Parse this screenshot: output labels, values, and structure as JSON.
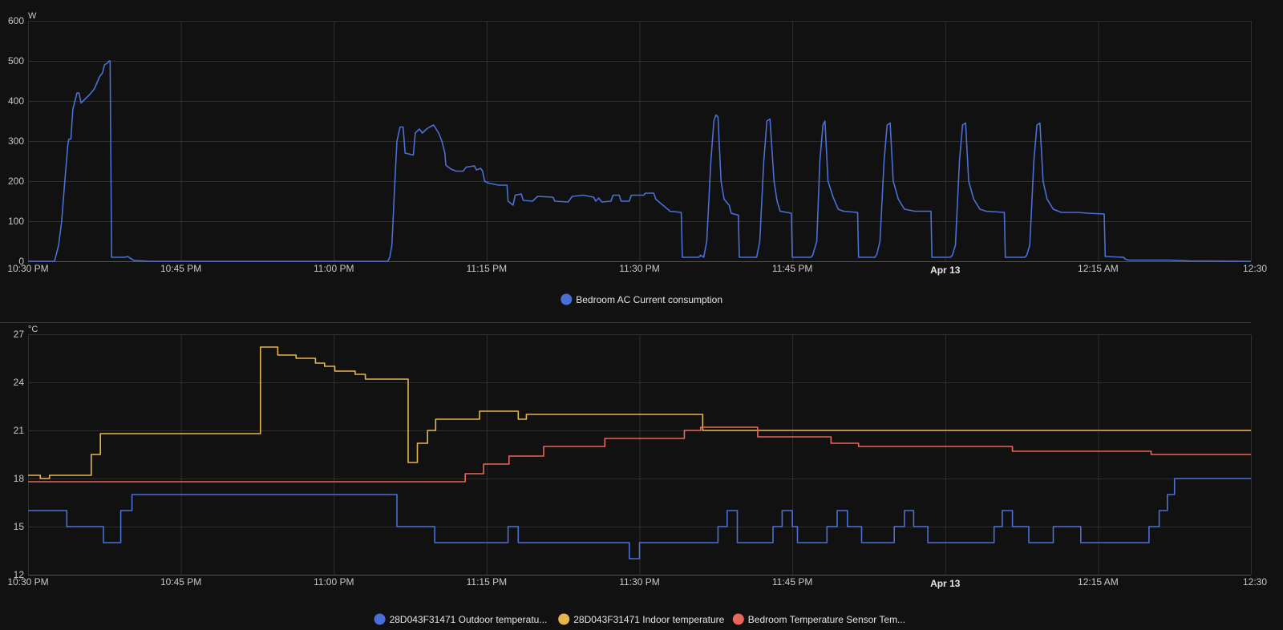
{
  "chart_data": [
    {
      "type": "line",
      "title": "",
      "ylabel": "W",
      "ylim": [
        0,
        600
      ],
      "yticks": [
        "0",
        "100",
        "200",
        "300",
        "400",
        "500",
        "600"
      ],
      "xlim": [
        "10:30 PM",
        "12:30 AM"
      ],
      "xticks": [
        "10:30 PM",
        "10:45 PM",
        "11:00 PM",
        "11:15 PM",
        "11:30 PM",
        "11:45 PM",
        "Apr 13",
        "12:15 AM",
        "12:30"
      ],
      "grid": true,
      "legend_position": "bottom",
      "series": [
        {
          "name": "Bedroom AC Current consumption",
          "color": "#4a6fd6",
          "step": false,
          "points": [
            [
              0,
              0
            ],
            [
              2.6,
              0
            ],
            [
              3,
              40
            ],
            [
              3.3,
              100
            ],
            [
              3.6,
              200
            ],
            [
              3.9,
              290
            ],
            [
              4,
              305
            ],
            [
              4.2,
              305
            ],
            [
              4.4,
              380
            ],
            [
              4.8,
              420
            ],
            [
              5,
              420
            ],
            [
              5.2,
              395
            ],
            [
              5.6,
              405
            ],
            [
              6,
              415
            ],
            [
              6.5,
              430
            ],
            [
              7,
              460
            ],
            [
              7.3,
              470
            ],
            [
              7.5,
              490
            ],
            [
              7.8,
              495
            ],
            [
              7.95,
              500
            ],
            [
              8.05,
              500
            ],
            [
              8.2,
              10
            ],
            [
              9.5,
              10
            ],
            [
              9.8,
              12
            ],
            [
              10,
              8
            ],
            [
              10.4,
              2
            ],
            [
              12,
              0
            ],
            [
              35.3,
              0
            ],
            [
              35.5,
              10
            ],
            [
              35.7,
              40
            ],
            [
              36,
              200
            ],
            [
              36.2,
              300
            ],
            [
              36.5,
              335
            ],
            [
              36.8,
              335
            ],
            [
              37,
              270
            ],
            [
              37.8,
              265
            ],
            [
              38,
              320
            ],
            [
              38.4,
              330
            ],
            [
              38.7,
              320
            ],
            [
              39.1,
              330
            ],
            [
              39.4,
              335
            ],
            [
              39.8,
              340
            ],
            [
              40.3,
              320
            ],
            [
              40.6,
              300
            ],
            [
              40.9,
              270
            ],
            [
              41,
              240
            ],
            [
              41.5,
              230
            ],
            [
              42,
              225
            ],
            [
              42.7,
              225
            ],
            [
              43,
              235
            ],
            [
              43.8,
              238
            ],
            [
              44,
              228
            ],
            [
              44.4,
              232
            ],
            [
              44.6,
              225
            ],
            [
              44.8,
              200
            ],
            [
              45.2,
              195
            ],
            [
              46.2,
              190
            ],
            [
              47,
              190
            ],
            [
              47.1,
              150
            ],
            [
              47.6,
              140
            ],
            [
              47.8,
              165
            ],
            [
              48.4,
              168
            ],
            [
              48.6,
              152
            ],
            [
              49.5,
              150
            ],
            [
              50,
              162
            ],
            [
              51.5,
              160
            ],
            [
              51.7,
              150
            ],
            [
              53,
              148
            ],
            [
              53.4,
              162
            ],
            [
              54.5,
              165
            ],
            [
              55.5,
              160
            ],
            [
              55.7,
              150
            ],
            [
              56,
              158
            ],
            [
              56.3,
              148
            ],
            [
              57.2,
              150
            ],
            [
              57.4,
              165
            ],
            [
              58,
              165
            ],
            [
              58.2,
              150
            ],
            [
              59,
              150
            ],
            [
              59.2,
              165
            ],
            [
              60.4,
              165
            ],
            [
              60.6,
              170
            ],
            [
              61.4,
              170
            ],
            [
              61.6,
              155
            ],
            [
              63,
              125
            ],
            [
              64.1,
              122
            ],
            [
              64.2,
              10
            ],
            [
              65.8,
              10
            ],
            [
              66,
              15
            ],
            [
              66.3,
              10
            ],
            [
              66.6,
              50
            ],
            [
              67,
              250
            ],
            [
              67.3,
              350
            ],
            [
              67.5,
              365
            ],
            [
              67.7,
              360
            ],
            [
              68,
              200
            ],
            [
              68.3,
              155
            ],
            [
              68.8,
              140
            ],
            [
              69,
              120
            ],
            [
              69.7,
              115
            ],
            [
              69.8,
              10
            ],
            [
              71.5,
              10
            ],
            [
              71.8,
              50
            ],
            [
              72.2,
              250
            ],
            [
              72.5,
              350
            ],
            [
              72.8,
              355
            ],
            [
              73.2,
              200
            ],
            [
              73.5,
              150
            ],
            [
              73.8,
              125
            ],
            [
              74.9,
              120
            ],
            [
              75,
              10
            ],
            [
              76.8,
              10
            ],
            [
              77,
              15
            ],
            [
              77.4,
              50
            ],
            [
              77.7,
              250
            ],
            [
              78,
              340
            ],
            [
              78.2,
              350
            ],
            [
              78.5,
              200
            ],
            [
              79,
              160
            ],
            [
              79.5,
              130
            ],
            [
              80,
              125
            ],
            [
              81.4,
              122
            ],
            [
              81.5,
              10
            ],
            [
              83.1,
              10
            ],
            [
              83.3,
              18
            ],
            [
              83.6,
              50
            ],
            [
              84,
              250
            ],
            [
              84.3,
              340
            ],
            [
              84.6,
              345
            ],
            [
              84.9,
              200
            ],
            [
              85.4,
              155
            ],
            [
              86,
              130
            ],
            [
              87,
              125
            ],
            [
              88.6,
              125
            ],
            [
              88.7,
              10
            ],
            [
              90.5,
              10
            ],
            [
              90.7,
              15
            ],
            [
              91,
              40
            ],
            [
              91.4,
              250
            ],
            [
              91.7,
              340
            ],
            [
              92,
              345
            ],
            [
              92.3,
              200
            ],
            [
              92.8,
              155
            ],
            [
              93.4,
              130
            ],
            [
              94,
              125
            ],
            [
              95.8,
              122
            ],
            [
              95.9,
              10
            ],
            [
              97.8,
              10
            ],
            [
              98,
              15
            ],
            [
              98.3,
              40
            ],
            [
              98.7,
              250
            ],
            [
              99,
              340
            ],
            [
              99.3,
              345
            ],
            [
              99.6,
              200
            ],
            [
              100,
              155
            ],
            [
              100.6,
              130
            ],
            [
              101.4,
              122
            ],
            [
              103,
              122
            ],
            [
              104,
              120
            ],
            [
              105.6,
              118
            ],
            [
              105.7,
              12
            ],
            [
              107.5,
              10
            ],
            [
              107.7,
              5
            ],
            [
              108,
              3
            ],
            [
              112,
              3
            ],
            [
              114,
              1
            ],
            [
              120,
              0
            ]
          ]
        }
      ]
    },
    {
      "type": "line",
      "title": "",
      "ylabel": "°C",
      "ylim": [
        12,
        27
      ],
      "yticks": [
        "12",
        "15",
        "18",
        "21",
        "24",
        "27"
      ],
      "xlim": [
        "10:30 PM",
        "12:30 AM"
      ],
      "xticks": [
        "10:30 PM",
        "10:45 PM",
        "11:00 PM",
        "11:15 PM",
        "11:30 PM",
        "11:45 PM",
        "Apr 13",
        "12:15 AM",
        "12:30"
      ],
      "grid": true,
      "legend_position": "bottom",
      "series": [
        {
          "name": "28D043F31471 Outdoor temperatu...",
          "color": "#4a6fd6",
          "step": true,
          "points": [
            [
              0,
              16
            ],
            [
              3.8,
              15
            ],
            [
              7.4,
              14
            ],
            [
              9.1,
              16
            ],
            [
              10.2,
              17
            ],
            [
              36.2,
              15
            ],
            [
              39.9,
              14
            ],
            [
              47.1,
              15
            ],
            [
              48.1,
              14
            ],
            [
              59,
              13
            ],
            [
              60,
              14
            ],
            [
              67.7,
              15
            ],
            [
              68.6,
              16
            ],
            [
              69.6,
              14
            ],
            [
              73.1,
              15
            ],
            [
              74,
              16
            ],
            [
              75,
              15
            ],
            [
              75.5,
              14
            ],
            [
              78.4,
              15
            ],
            [
              79.4,
              16
            ],
            [
              80.4,
              15
            ],
            [
              81.8,
              14
            ],
            [
              85,
              15
            ],
            [
              86,
              16
            ],
            [
              86.9,
              15
            ],
            [
              88.3,
              14
            ],
            [
              94.8,
              15
            ],
            [
              95.6,
              16
            ],
            [
              96.6,
              15
            ],
            [
              98.2,
              14
            ],
            [
              100.6,
              15
            ],
            [
              103.3,
              14
            ],
            [
              110,
              15
            ],
            [
              111,
              16
            ],
            [
              111.8,
              17
            ],
            [
              112.5,
              18
            ],
            [
              120,
              18
            ]
          ]
        },
        {
          "name": "28D043F31471 Indoor temperature",
          "color": "#e6b54a",
          "step": true,
          "points": [
            [
              0,
              18.2
            ],
            [
              1.2,
              18
            ],
            [
              2.1,
              18.2
            ],
            [
              6.2,
              19.5
            ],
            [
              7.1,
              20.8
            ],
            [
              22.8,
              26.2
            ],
            [
              24.5,
              25.7
            ],
            [
              26.3,
              25.5
            ],
            [
              28.2,
              25.2
            ],
            [
              29.1,
              25
            ],
            [
              30.1,
              24.7
            ],
            [
              32.1,
              24.5
            ],
            [
              33.1,
              24.2
            ],
            [
              37.3,
              19
            ],
            [
              38.2,
              20.2
            ],
            [
              39.2,
              21
            ],
            [
              40,
              21.7
            ],
            [
              44.3,
              22.2
            ],
            [
              48.1,
              21.7
            ],
            [
              48.9,
              22
            ],
            [
              66.2,
              21
            ],
            [
              120,
              21
            ]
          ]
        },
        {
          "name": "Bedroom Temperature Sensor Tem...",
          "color": "#e8665a",
          "step": true,
          "points": [
            [
              0,
              17.8
            ],
            [
              42.9,
              18.3
            ],
            [
              44.7,
              18.9
            ],
            [
              47.2,
              19.4
            ],
            [
              50.6,
              20
            ],
            [
              56.6,
              20.5
            ],
            [
              64.4,
              21
            ],
            [
              66,
              21.2
            ],
            [
              71.6,
              20.6
            ],
            [
              78.8,
              20.2
            ],
            [
              81.5,
              20
            ],
            [
              96.6,
              19.7
            ],
            [
              110.2,
              19.5
            ],
            [
              120,
              19.5
            ]
          ]
        }
      ]
    }
  ]
}
